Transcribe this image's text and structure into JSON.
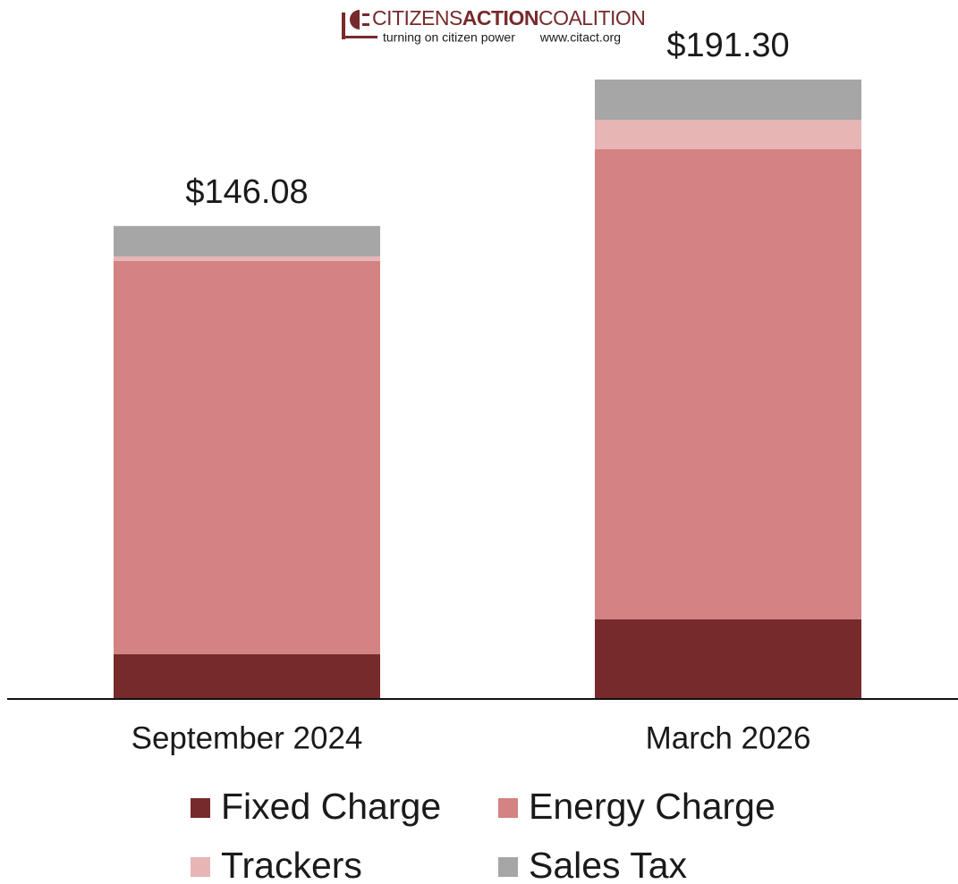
{
  "logo": {
    "name_parts": [
      "CITIZENS",
      "ACTION",
      "COALITION"
    ],
    "tagline": "turning on citizen power",
    "url": "www.citact.org"
  },
  "chart_data": {
    "type": "stacked_bar",
    "categories": [
      "September 2024",
      "March 2026"
    ],
    "series": [
      {
        "name": "Fixed Charge",
        "color": "#772a2b",
        "values": [
          13.81,
          24.57
        ]
      },
      {
        "name": "Energy Charge",
        "color": "#d38382",
        "values": [
          121.5,
          145.2
        ]
      },
      {
        "name": "Trackers",
        "color": "#e8b5b5",
        "values": [
          1.37,
          9.1
        ]
      },
      {
        "name": "Sales Tax",
        "color": "#a6a6a6",
        "values": [
          9.4,
          12.43
        ]
      }
    ],
    "totals": [
      146.08,
      191.3
    ],
    "total_labels": [
      "$146.08",
      "$191.30"
    ],
    "legend": "bottom"
  }
}
